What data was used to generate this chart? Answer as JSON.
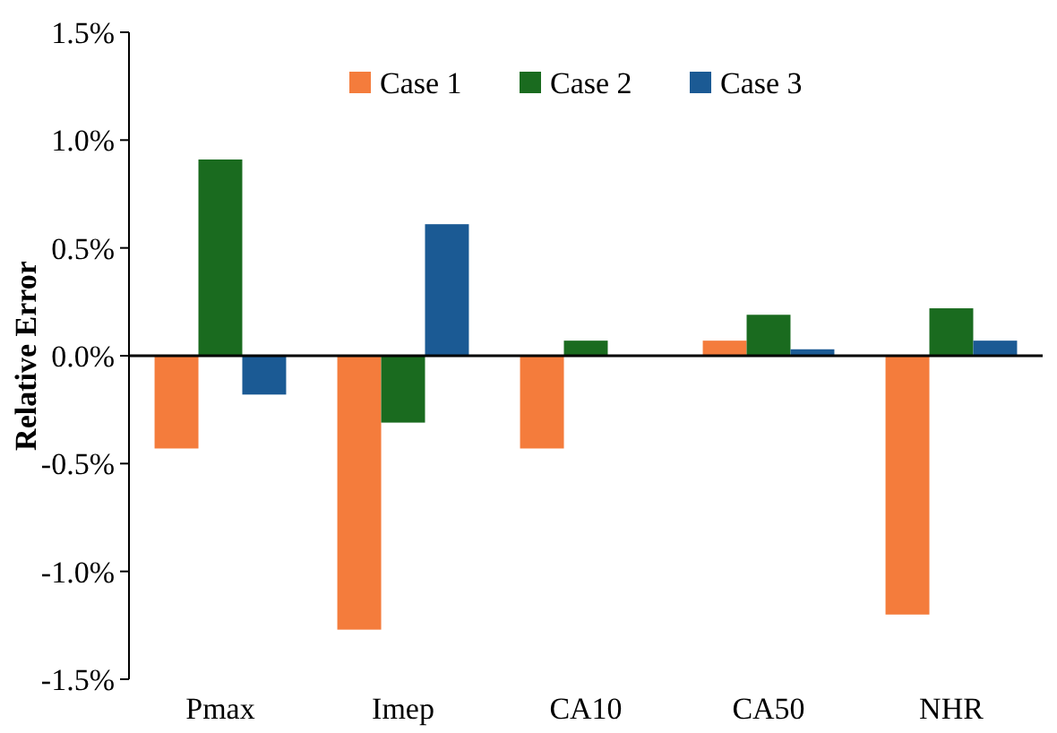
{
  "chart_data": {
    "type": "bar",
    "ylabel": "Relative Error",
    "categories": [
      "Pmax",
      "Imep",
      "CA10",
      "CA50",
      "NHR"
    ],
    "series": [
      {
        "name": "Case 1",
        "color": "#f47c3c",
        "values": [
          -0.43,
          -1.27,
          -0.43,
          0.07,
          -1.2
        ]
      },
      {
        "name": "Case 2",
        "color": "#1a6b1f",
        "values": [
          0.91,
          -0.31,
          0.07,
          0.19,
          0.22
        ]
      },
      {
        "name": "Case 3",
        "color": "#1b5a94",
        "values": [
          -0.18,
          0.61,
          0,
          0.03,
          0.07
        ]
      }
    ],
    "ylim": [
      -1.5,
      1.5
    ],
    "yticks": [
      {
        "value": -1.5,
        "label": "-1.5%"
      },
      {
        "value": -1,
        "label": "-1.0%"
      },
      {
        "value": -0.5,
        "label": "-0.5%"
      },
      {
        "value": 0,
        "label": "0.0%"
      },
      {
        "value": 0.5,
        "label": "0.5%"
      },
      {
        "value": 1,
        "label": "1.0%"
      },
      {
        "value": 1.5,
        "label": "1.5%"
      }
    ],
    "legend": "top"
  }
}
